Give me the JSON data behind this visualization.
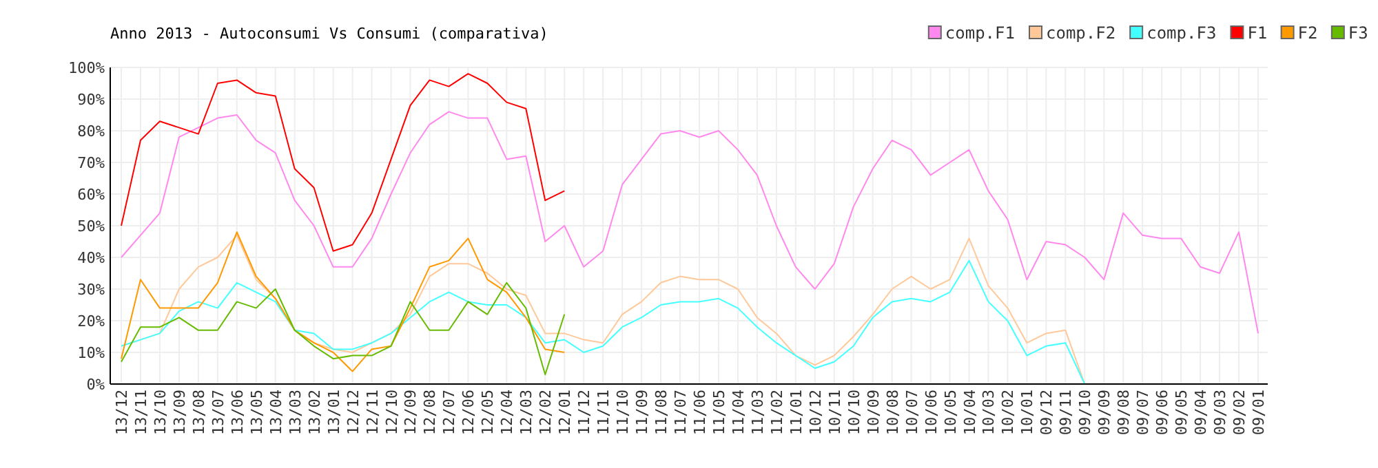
{
  "chart_data": {
    "type": "line",
    "title": "Anno 2013 - Autoconsumi Vs Consumi (comparativa)",
    "categories": [
      "13/12",
      "13/11",
      "13/10",
      "13/09",
      "13/08",
      "13/07",
      "13/06",
      "13/05",
      "13/04",
      "13/03",
      "13/02",
      "13/01",
      "12/12",
      "12/11",
      "12/10",
      "12/09",
      "12/08",
      "12/07",
      "12/06",
      "12/05",
      "12/04",
      "12/03",
      "12/02",
      "12/01",
      "11/12",
      "11/11",
      "11/10",
      "11/09",
      "11/08",
      "11/07",
      "11/06",
      "11/05",
      "11/04",
      "11/03",
      "11/02",
      "11/01",
      "10/12",
      "10/11",
      "10/10",
      "10/09",
      "10/08",
      "10/07",
      "10/06",
      "10/05",
      "10/04",
      "10/03",
      "10/02",
      "10/01",
      "09/12",
      "09/11",
      "09/10",
      "09/09",
      "09/08",
      "09/07",
      "09/06",
      "09/05",
      "09/04",
      "09/03",
      "09/02",
      "09/01"
    ],
    "series": [
      {
        "name": "comp.F1",
        "color": "#ff88ee",
        "values": [
          40,
          47,
          54,
          78,
          81,
          84,
          85,
          77,
          73,
          58,
          50,
          37,
          37,
          46,
          60,
          73,
          82,
          86,
          84,
          84,
          71,
          72,
          45,
          50,
          37,
          42,
          63,
          71,
          79,
          80,
          78,
          80,
          74,
          66,
          50,
          37,
          30,
          38,
          56,
          68,
          77,
          74,
          66,
          70,
          74,
          61,
          52,
          33,
          45,
          44,
          40,
          33,
          54,
          47,
          46,
          46,
          37,
          35,
          48,
          16
        ]
      },
      {
        "name": "comp.F2",
        "color": "#ffc898",
        "values": [
          12,
          14,
          16,
          30,
          37,
          40,
          47,
          33,
          27,
          17,
          13,
          11,
          10,
          13,
          16,
          22,
          34,
          38,
          38,
          35,
          30,
          28,
          16,
          16,
          14,
          13,
          22,
          26,
          32,
          34,
          33,
          33,
          30,
          21,
          16,
          9,
          6,
          9,
          15,
          22,
          30,
          34,
          30,
          33,
          46,
          31,
          24,
          13,
          16,
          17,
          0,
          null,
          null,
          null,
          null,
          null,
          null,
          null,
          null,
          null
        ]
      },
      {
        "name": "comp.F3",
        "color": "#44ffff",
        "values": [
          12,
          14,
          16,
          23,
          26,
          24,
          32,
          29,
          26,
          17,
          16,
          11,
          11,
          13,
          16,
          21,
          26,
          29,
          26,
          25,
          25,
          21,
          13,
          14,
          10,
          12,
          18,
          21,
          25,
          26,
          26,
          27,
          24,
          18,
          13,
          9,
          5,
          7,
          12,
          21,
          26,
          27,
          26,
          29,
          39,
          26,
          20,
          9,
          12,
          13,
          0,
          null,
          null,
          null,
          null,
          null,
          null,
          null,
          null,
          null
        ]
      },
      {
        "name": "F1",
        "color": "#ff0000",
        "values": [
          50,
          77,
          83,
          81,
          79,
          95,
          96,
          92,
          91,
          68,
          62,
          42,
          44,
          54,
          71,
          88,
          96,
          94,
          98,
          95,
          89,
          87,
          58,
          61,
          null,
          null,
          null,
          null,
          null,
          null,
          null,
          null,
          null,
          null,
          null,
          null,
          null,
          null,
          null,
          null,
          null,
          null,
          null,
          null,
          null,
          null,
          null,
          null,
          null,
          null,
          null,
          null,
          null,
          null,
          null,
          null,
          null,
          null,
          null,
          null
        ]
      },
      {
        "name": "F2",
        "color": "#ff9900",
        "values": [
          8,
          33,
          24,
          24,
          24,
          32,
          48,
          34,
          27,
          17,
          13,
          10,
          4,
          11,
          12,
          24,
          37,
          39,
          46,
          33,
          29,
          21,
          11,
          10,
          null,
          null,
          null,
          null,
          null,
          null,
          null,
          null,
          null,
          null,
          null,
          null,
          null,
          null,
          null,
          null,
          null,
          null,
          null,
          null,
          null,
          null,
          null,
          null,
          null,
          null,
          null,
          null,
          null,
          null,
          null,
          null,
          null,
          null,
          null,
          null
        ]
      },
      {
        "name": "F3",
        "color": "#66bb00",
        "values": [
          7,
          18,
          18,
          21,
          17,
          17,
          26,
          24,
          30,
          17,
          12,
          8,
          9,
          9,
          12,
          26,
          17,
          17,
          26,
          22,
          32,
          24,
          3,
          22,
          null,
          null,
          null,
          null,
          null,
          null,
          null,
          null,
          null,
          null,
          null,
          null,
          null,
          null,
          null,
          null,
          null,
          null,
          null,
          null,
          null,
          null,
          null,
          null,
          null,
          null,
          null,
          null,
          null,
          null,
          null,
          null,
          null,
          null,
          null,
          null
        ]
      }
    ],
    "ylim": [
      0,
      100
    ],
    "yticks": [
      {
        "value": 0,
        "label": "0%"
      },
      {
        "value": 10,
        "label": "10%"
      },
      {
        "value": 20,
        "label": "20%"
      },
      {
        "value": 30,
        "label": "30%"
      },
      {
        "value": 40,
        "label": "40%"
      },
      {
        "value": 50,
        "label": "50%"
      },
      {
        "value": 60,
        "label": "60%"
      },
      {
        "value": 70,
        "label": "70%"
      },
      {
        "value": 80,
        "label": "80%"
      },
      {
        "value": 90,
        "label": "90%"
      },
      {
        "value": 100,
        "label": "100%"
      }
    ],
    "grid": true,
    "legend": "top right"
  }
}
